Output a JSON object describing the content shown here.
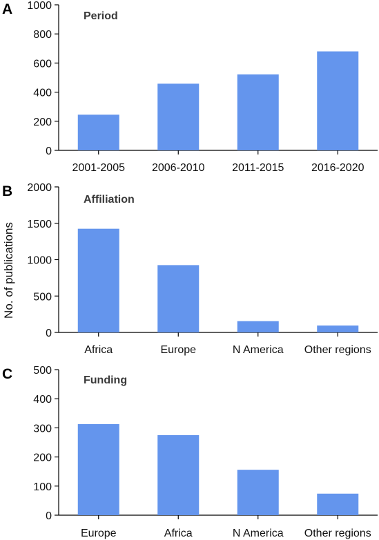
{
  "figure": {
    "ylabel": "No. of publications",
    "bar_color": "#6495ED"
  },
  "chart_data": [
    {
      "type": "bar",
      "panel_label": "A",
      "title": "Period",
      "categories": [
        "2001-2005",
        "2006-2010",
        "2011-2015",
        "2016-2020"
      ],
      "values": [
        245,
        458,
        522,
        680
      ],
      "ylim": [
        0,
        1000
      ],
      "yticks": [
        0,
        200,
        400,
        600,
        800,
        1000
      ],
      "grid": false,
      "legend": "none"
    },
    {
      "type": "bar",
      "panel_label": "B",
      "title": "Affiliation",
      "categories": [
        "Africa",
        "Europe",
        "N America",
        "Other regions"
      ],
      "values": [
        1425,
        925,
        155,
        95
      ],
      "ylim": [
        0,
        2000
      ],
      "yticks": [
        0,
        500,
        1000,
        1500,
        2000
      ],
      "grid": false,
      "legend": "none"
    },
    {
      "type": "bar",
      "panel_label": "C",
      "title": "Funding",
      "categories": [
        "Europe",
        "Africa",
        "N America",
        "Other regions"
      ],
      "values": [
        313,
        275,
        156,
        74
      ],
      "ylim": [
        0,
        500
      ],
      "yticks": [
        0,
        100,
        200,
        300,
        400,
        500
      ],
      "grid": false,
      "legend": "none"
    }
  ]
}
